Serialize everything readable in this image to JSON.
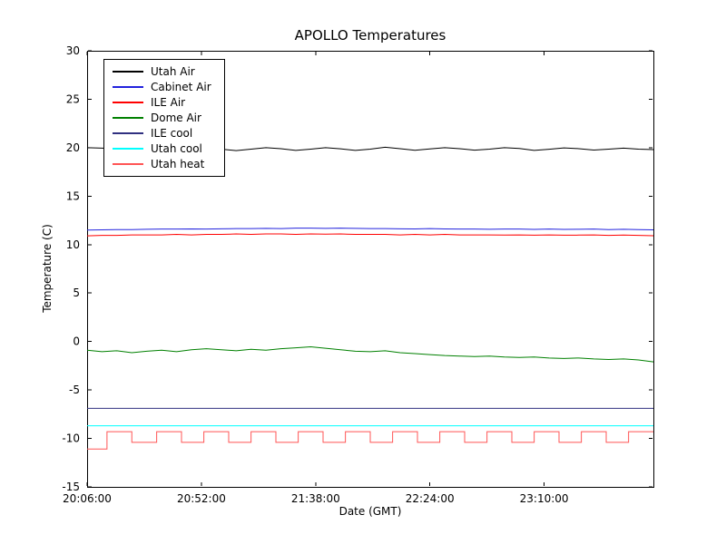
{
  "chart_data": {
    "type": "line",
    "title": "APOLLO Temperatures",
    "xlabel": "Date (GMT)",
    "ylabel": "Temperature (C)",
    "x_unit": "minutes-of-day GMT",
    "xlim": [
      1206,
      1434
    ],
    "ylim": [
      -15,
      30
    ],
    "grid": false,
    "legend_position": "upper-left",
    "axis_color": "#000000",
    "y_ticks": [
      -15,
      -10,
      -5,
      0,
      5,
      10,
      15,
      20,
      25,
      30
    ],
    "x_ticks": [
      {
        "t": 1206,
        "label": "20:06:00"
      },
      {
        "t": 1252,
        "label": "20:52:00"
      },
      {
        "t": 1298,
        "label": "21:38:00"
      },
      {
        "t": 1344,
        "label": "22:24:00"
      },
      {
        "t": 1390,
        "label": "23:10:00"
      }
    ],
    "x_arrays": {
      "sampled": [
        1206,
        1212,
        1218,
        1224,
        1230,
        1236,
        1242,
        1248,
        1254,
        1260,
        1266,
        1272,
        1278,
        1284,
        1290,
        1296,
        1302,
        1308,
        1314,
        1320,
        1326,
        1332,
        1338,
        1344,
        1350,
        1356,
        1362,
        1368,
        1374,
        1380,
        1386,
        1392,
        1398,
        1404,
        1410,
        1416,
        1422,
        1428,
        1434
      ]
    },
    "series": [
      {
        "name": "Utah Air",
        "color": "#000000",
        "x": "sampled",
        "y": [
          20.0,
          19.95,
          19.9,
          19.85,
          19.9,
          19.8,
          19.75,
          19.9,
          20.0,
          19.85,
          19.7,
          19.85,
          20.0,
          19.9,
          19.72,
          19.85,
          20.0,
          19.88,
          19.72,
          19.85,
          20.05,
          19.9,
          19.73,
          19.87,
          20.0,
          19.9,
          19.74,
          19.85,
          20.0,
          19.92,
          19.72,
          19.84,
          19.98,
          19.9,
          19.75,
          19.85,
          19.95,
          19.85,
          19.8
        ]
      },
      {
        "name": "Cabinet Air",
        "color": "#2222dd",
        "x": "sampled",
        "y": [
          11.5,
          11.52,
          11.55,
          11.55,
          11.58,
          11.6,
          11.6,
          11.62,
          11.6,
          11.63,
          11.65,
          11.65,
          11.68,
          11.65,
          11.7,
          11.7,
          11.68,
          11.7,
          11.67,
          11.65,
          11.65,
          11.63,
          11.62,
          11.65,
          11.62,
          11.6,
          11.6,
          11.58,
          11.6,
          11.6,
          11.57,
          11.6,
          11.57,
          11.58,
          11.6,
          11.55,
          11.58,
          11.55,
          11.52
        ]
      },
      {
        "name": "ILE Air",
        "color": "#ff0000",
        "x": "sampled",
        "y": [
          10.9,
          10.95,
          10.95,
          11.0,
          11.0,
          11.0,
          11.05,
          11.0,
          11.05,
          11.05,
          11.1,
          11.05,
          11.1,
          11.1,
          11.05,
          11.1,
          11.08,
          11.1,
          11.05,
          11.05,
          11.05,
          11.0,
          11.05,
          11.0,
          11.05,
          11.0,
          11.0,
          11.0,
          10.98,
          11.0,
          10.97,
          11.0,
          10.97,
          10.98,
          11.0,
          10.95,
          10.98,
          10.95,
          10.92
        ]
      },
      {
        "name": "Dome Air",
        "color": "#008000",
        "x": "sampled",
        "y": [
          -0.9,
          -1.05,
          -0.95,
          -1.15,
          -1.0,
          -0.9,
          -1.05,
          -0.85,
          -0.75,
          -0.85,
          -0.95,
          -0.8,
          -0.9,
          -0.75,
          -0.65,
          -0.55,
          -0.7,
          -0.85,
          -1.0,
          -1.05,
          -0.95,
          -1.15,
          -1.25,
          -1.35,
          -1.45,
          -1.5,
          -1.55,
          -1.5,
          -1.6,
          -1.65,
          -1.6,
          -1.7,
          -1.75,
          -1.7,
          -1.8,
          -1.85,
          -1.8,
          -1.9,
          -2.1
        ]
      },
      {
        "name": "ILE cool",
        "color": "#303080",
        "x": [
          1206,
          1434
        ],
        "y": [
          -6.9,
          -6.9
        ]
      },
      {
        "name": "Utah cool",
        "color": "#00ffff",
        "x": [
          1206,
          1434
        ],
        "y": [
          -8.7,
          -8.7
        ]
      },
      {
        "name": "Utah heat",
        "color": "#ff5555",
        "x": [
          1206,
          1214,
          1214,
          1224,
          1224,
          1234,
          1234,
          1244,
          1244,
          1253,
          1253,
          1263,
          1263,
          1272,
          1272,
          1282,
          1282,
          1291,
          1291,
          1301,
          1301,
          1310,
          1310,
          1320,
          1320,
          1329,
          1329,
          1339,
          1339,
          1348,
          1348,
          1358,
          1358,
          1367,
          1367,
          1377,
          1377,
          1386,
          1386,
          1396,
          1396,
          1405,
          1405,
          1415,
          1415,
          1424,
          1424,
          1434
        ],
        "y": [
          -11.1,
          -11.1,
          -9.3,
          -9.3,
          -10.4,
          -10.4,
          -9.3,
          -9.3,
          -10.4,
          -10.4,
          -9.3,
          -9.3,
          -10.4,
          -10.4,
          -9.3,
          -9.3,
          -10.4,
          -10.4,
          -9.3,
          -9.3,
          -10.4,
          -10.4,
          -9.3,
          -9.3,
          -10.4,
          -10.4,
          -9.3,
          -9.3,
          -10.4,
          -10.4,
          -9.3,
          -9.3,
          -10.4,
          -10.4,
          -9.3,
          -9.3,
          -10.4,
          -10.4,
          -9.3,
          -9.3,
          -10.4,
          -10.4,
          -9.3,
          -9.3,
          -10.4,
          -10.4,
          -9.3,
          -9.3
        ]
      }
    ]
  }
}
